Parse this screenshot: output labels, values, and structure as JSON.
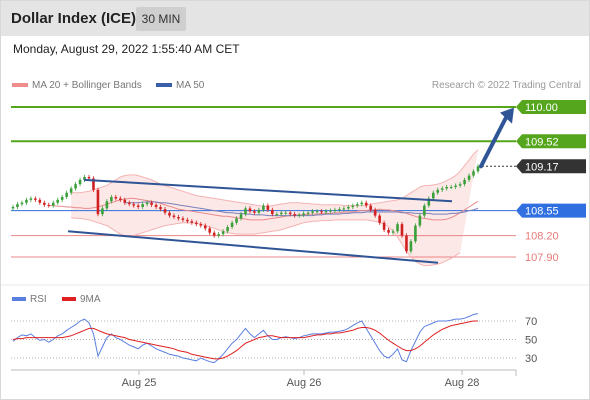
{
  "header": {
    "title": "Dollar Index (ICE)",
    "timeframe": "30 MIN"
  },
  "datetime": "Monday, August 29, 2022 1:55:40 AM CET",
  "legend": {
    "ma20_label": "MA 20 + Bollinger Bands",
    "ma50_label": "MA 50",
    "ma20_color": "#f08c8c",
    "ma50_color": "#3a5fa8",
    "credit": "Research © 2022 Trading Central"
  },
  "rsi_legend": {
    "rsi_label": "RSI",
    "ma_label": "9MA",
    "rsi_color": "#5b7fe0",
    "ma_color": "#e02020"
  },
  "colors": {
    "up": "#3aa03a",
    "down": "#d02020",
    "channel": "#2f5596",
    "resistance": "#55a61c",
    "support": "#e87a7a",
    "current": "#333333",
    "pivot": "#2f6fe0",
    "arrow": "#2f5596"
  },
  "chart_data": [
    {
      "type": "candlestick",
      "title": "Dollar Index (ICE)",
      "timeframe": "30 MIN",
      "x_tick_labels": [
        "Aug 25",
        "Aug 26",
        "Aug 28"
      ],
      "levels": [
        {
          "label": "110.00",
          "value": 110.0,
          "kind": "resistance"
        },
        {
          "label": "109.52",
          "value": 109.52,
          "kind": "resistance"
        },
        {
          "label": "109.17",
          "value": 109.17,
          "kind": "current"
        },
        {
          "label": "108.55",
          "value": 108.55,
          "kind": "pivot"
        },
        {
          "label": "108.20",
          "value": 108.2,
          "kind": "support"
        },
        {
          "label": "107.90",
          "value": 107.9,
          "kind": "support"
        }
      ],
      "close": [
        108.6,
        108.64,
        108.66,
        108.7,
        108.72,
        108.7,
        108.66,
        108.63,
        108.62,
        108.66,
        108.7,
        108.74,
        108.8,
        108.86,
        108.92,
        108.98,
        109.02,
        109.0,
        108.84,
        108.5,
        108.58,
        108.68,
        108.74,
        108.72,
        108.7,
        108.66,
        108.64,
        108.62,
        108.6,
        108.64,
        108.66,
        108.63,
        108.6,
        108.57,
        108.52,
        108.48,
        108.46,
        108.44,
        108.42,
        108.4,
        108.38,
        108.36,
        108.34,
        108.3,
        108.24,
        108.2,
        108.22,
        108.26,
        108.32,
        108.38,
        108.44,
        108.5,
        108.58,
        108.54,
        108.52,
        108.56,
        108.62,
        108.56,
        108.5,
        108.5,
        108.52,
        108.52,
        108.5,
        108.48,
        108.49,
        108.51,
        108.52,
        108.54,
        108.54,
        108.53,
        108.54,
        108.55,
        108.56,
        108.57,
        108.58,
        108.6,
        108.62,
        108.64,
        108.66,
        108.62,
        108.56,
        108.48,
        108.38,
        108.28,
        108.24,
        108.26,
        108.36,
        108.2,
        107.98,
        108.12,
        108.34,
        108.48,
        108.62,
        108.72,
        108.8,
        108.84,
        108.86,
        108.88,
        108.88,
        108.9,
        108.92,
        108.98,
        109.04,
        109.1,
        109.17
      ],
      "channel": {
        "upper": [
          [
            84,
            108.98
          ],
          [
            452,
            108.68
          ]
        ],
        "lower": [
          [
            68,
            108.26
          ],
          [
            438,
            107.82
          ]
        ]
      },
      "ma20": [
        108.62,
        108.62,
        108.61,
        108.61,
        108.6,
        108.6,
        108.59,
        108.59,
        108.58,
        108.58,
        108.59,
        108.6,
        108.62,
        108.64,
        108.66,
        108.68,
        108.7,
        108.71,
        108.72,
        108.72,
        108.71,
        108.7,
        108.69,
        108.68,
        108.67,
        108.65,
        108.63,
        108.61,
        108.59,
        108.57,
        108.56,
        108.55,
        108.54,
        108.53,
        108.52,
        108.51,
        108.5,
        108.49,
        108.48,
        108.47,
        108.47,
        108.46,
        108.45,
        108.44,
        108.43,
        108.42,
        108.42,
        108.42,
        108.42,
        108.43,
        108.44,
        108.45,
        108.46,
        108.47,
        108.48,
        108.49,
        108.49,
        108.49,
        108.5,
        108.5,
        108.5,
        108.51,
        108.51,
        108.51,
        108.52,
        108.52,
        108.53,
        108.53,
        108.53,
        108.54,
        108.55,
        108.55,
        108.56,
        108.56,
        108.57,
        108.56,
        108.56,
        108.55,
        108.54,
        108.53,
        108.51,
        108.49,
        108.47,
        108.45,
        108.44,
        108.43,
        108.42,
        108.42,
        108.42,
        108.43,
        108.45,
        108.48,
        108.52,
        108.56,
        108.6,
        108.64,
        108.68
      ],
      "bb_upper": [
        108.8,
        108.8,
        108.8,
        108.81,
        108.82,
        108.84,
        108.86,
        108.88,
        108.9,
        108.94,
        108.98,
        109.02,
        109.04,
        109.05,
        109.05,
        109.04,
        109.02,
        109.0,
        108.98,
        108.95,
        108.92,
        108.9,
        108.88,
        108.86,
        108.84,
        108.82,
        108.8,
        108.78,
        108.76,
        108.75,
        108.74,
        108.73,
        108.72,
        108.71,
        108.7,
        108.69,
        108.68,
        108.67,
        108.66,
        108.65,
        108.64,
        108.63,
        108.62,
        108.61,
        108.61,
        108.62,
        108.63,
        108.64,
        108.65,
        108.66,
        108.66,
        108.66,
        108.65,
        108.65,
        108.64,
        108.64,
        108.63,
        108.63,
        108.63,
        108.63,
        108.63,
        108.62,
        108.62,
        108.62,
        108.62,
        108.62,
        108.63,
        108.64,
        108.65,
        108.66,
        108.67,
        108.68,
        108.69,
        108.7,
        108.72,
        108.76,
        108.8,
        108.84,
        108.88,
        108.9,
        108.9,
        108.91,
        108.92,
        108.94,
        108.97,
        109.0,
        109.04,
        109.1,
        109.18,
        109.26,
        109.34,
        109.4
      ],
      "bb_lower": [
        108.45,
        108.44,
        108.44,
        108.43,
        108.42,
        108.4,
        108.38,
        108.36,
        108.34,
        108.3,
        108.26,
        108.22,
        108.2,
        108.19,
        108.2,
        108.22,
        108.24,
        108.26,
        108.28,
        108.3,
        108.32,
        108.34,
        108.35,
        108.36,
        108.37,
        108.38,
        108.38,
        108.38,
        108.37,
        108.36,
        108.34,
        108.32,
        108.3,
        108.28,
        108.26,
        108.24,
        108.23,
        108.22,
        108.22,
        108.22,
        108.22,
        108.22,
        108.23,
        108.24,
        108.25,
        108.26,
        108.27,
        108.28,
        108.3,
        108.32,
        108.34,
        108.36,
        108.38,
        108.39,
        108.4,
        108.4,
        108.41,
        108.41,
        108.41,
        108.42,
        108.42,
        108.42,
        108.42,
        108.42,
        108.42,
        108.42,
        108.42,
        108.41,
        108.4,
        108.38,
        108.36,
        108.32,
        108.26,
        108.18,
        108.08,
        107.98,
        107.9,
        107.84,
        107.8,
        107.78,
        107.78,
        107.79,
        107.8,
        107.82,
        107.85,
        107.88,
        107.92,
        107.96
      ],
      "ma50": [
        108.66,
        108.66,
        108.66,
        108.66,
        108.67,
        108.67,
        108.67,
        108.67,
        108.66,
        108.66,
        108.65,
        108.64,
        108.63,
        108.62,
        108.61,
        108.6,
        108.59,
        108.58,
        108.57,
        108.56,
        108.55,
        108.54,
        108.53,
        108.52,
        108.52,
        108.51,
        108.51,
        108.5,
        108.5,
        108.49,
        108.49,
        108.49,
        108.48,
        108.48,
        108.48,
        108.48,
        108.48,
        108.48,
        108.48,
        108.48,
        108.48,
        108.48,
        108.48,
        108.49,
        108.49,
        108.5,
        108.5,
        108.5,
        108.5,
        108.51,
        108.51,
        108.52,
        108.52,
        108.52,
        108.53,
        108.53,
        108.53,
        108.53,
        108.53,
        108.53,
        108.53,
        108.53,
        108.52,
        108.52,
        108.52,
        108.51,
        108.51,
        108.51,
        108.51,
        108.5,
        108.5,
        108.5,
        108.5,
        108.51,
        108.51,
        108.52,
        108.53,
        108.55,
        108.56,
        108.58
      ]
    },
    {
      "type": "line",
      "title": "RSI",
      "ylim": [
        20,
        80
      ],
      "y_tick_labels": [
        70,
        50,
        30
      ],
      "series": [
        {
          "name": "RSI",
          "values": [
            48,
            52,
            55,
            54,
            56,
            52,
            49,
            50,
            47,
            50,
            54,
            56,
            60,
            63,
            66,
            70,
            72,
            68,
            56,
            32,
            42,
            52,
            56,
            52,
            50,
            47,
            44,
            42,
            40,
            44,
            46,
            43,
            40,
            38,
            36,
            34,
            33,
            32,
            30,
            29,
            28,
            27,
            30,
            28,
            26,
            25,
            29,
            34,
            40,
            46,
            50,
            56,
            62,
            56,
            52,
            56,
            60,
            54,
            50,
            50,
            52,
            53,
            52,
            51,
            52,
            54,
            55,
            56,
            56,
            56,
            57,
            58,
            58,
            59,
            60,
            62,
            65,
            68,
            70,
            62,
            54,
            46,
            38,
            32,
            30,
            34,
            40,
            28,
            26,
            38,
            48,
            58,
            64,
            66,
            68,
            70,
            70,
            70,
            71,
            72,
            72,
            73,
            75,
            77,
            78
          ]
        },
        {
          "name": "9MA",
          "values": [
            50,
            51,
            51,
            52,
            52,
            52,
            52,
            52,
            52,
            52,
            52,
            52,
            53,
            54,
            56,
            58,
            60,
            62,
            62,
            60,
            58,
            56,
            55,
            54,
            53,
            52,
            50,
            49,
            48,
            47,
            46,
            45,
            44,
            43,
            42,
            41,
            40,
            38,
            37,
            36,
            34,
            33,
            32,
            31,
            30,
            29,
            29,
            30,
            32,
            35,
            38,
            42,
            46,
            48,
            50,
            52,
            53,
            54,
            54,
            53,
            52,
            52,
            52,
            52,
            52,
            52,
            53,
            54,
            55,
            55,
            56,
            56,
            57,
            57,
            58,
            59,
            60,
            62,
            63,
            63,
            62,
            60,
            57,
            53,
            49,
            46,
            43,
            40,
            38,
            38,
            40,
            43,
            47,
            51,
            55,
            58,
            61,
            63,
            65,
            66,
            67,
            68,
            69,
            70,
            70
          ]
        }
      ]
    }
  ]
}
